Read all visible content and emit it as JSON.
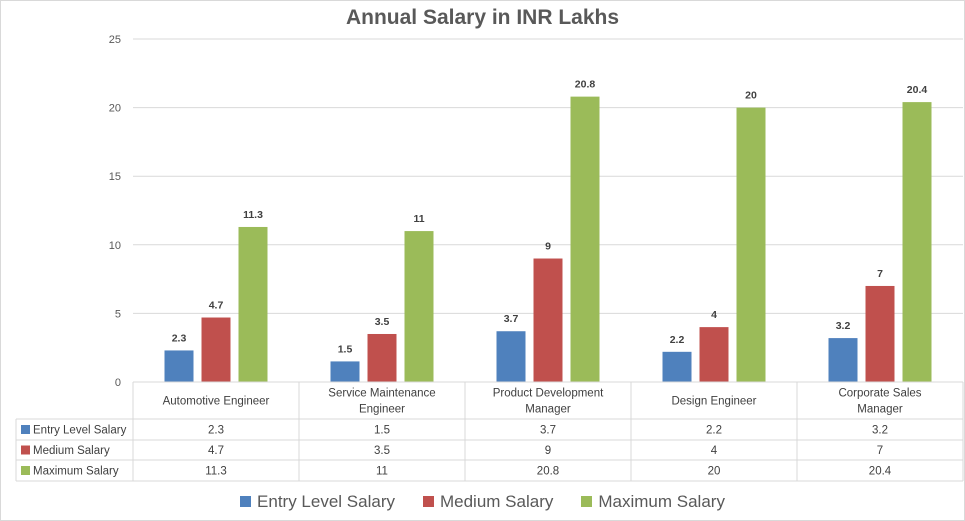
{
  "chart_data": {
    "type": "bar",
    "title": "Annual Salary in INR Lakhs",
    "xlabel": "",
    "ylabel": "",
    "ylim": [
      0,
      25
    ],
    "yticks": [
      0,
      5,
      10,
      15,
      20,
      25
    ],
    "grid": true,
    "legend_position": "bottom",
    "data_table": true,
    "categories": [
      [
        "Automotive Engineer"
      ],
      [
        "Service Maintenance",
        "Engineer"
      ],
      [
        "Product Development",
        "Manager"
      ],
      [
        "Design Engineer"
      ],
      [
        "Corporate Sales",
        "Manager"
      ]
    ],
    "series": [
      {
        "name": "Entry Level Salary",
        "color": "#4f81bd",
        "values": [
          2.3,
          1.5,
          3.7,
          2.2,
          3.2
        ]
      },
      {
        "name": "Medium Salary",
        "color": "#c0504d",
        "values": [
          4.7,
          3.5,
          9,
          4,
          7
        ]
      },
      {
        "name": "Maximum Salary",
        "color": "#9bbb59",
        "values": [
          11.3,
          11,
          20.8,
          20,
          20.4
        ]
      }
    ]
  }
}
